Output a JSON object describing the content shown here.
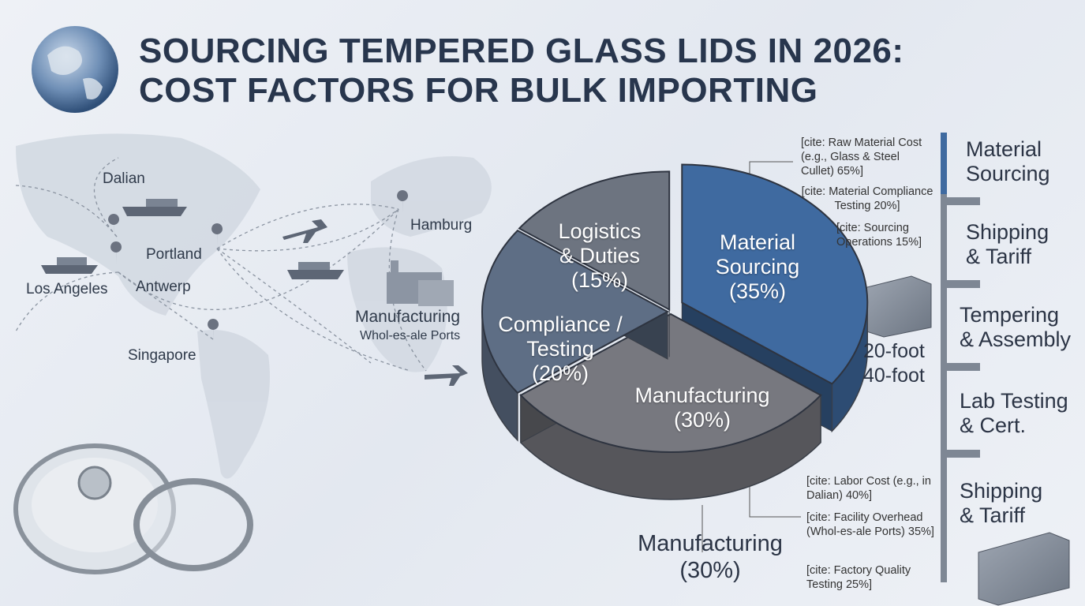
{
  "title": {
    "line1": "SOURCING TEMPERED GLASS LIDS IN 2026:",
    "line2": "COST FACTORS FOR BULK IMPORTING"
  },
  "map": {
    "cities": [
      "Dalian",
      "Portland",
      "Los Angeles",
      "Antwerp",
      "Singapore",
      "Hamburg"
    ],
    "manufacturing": "Manufacturing",
    "ports": "Whol-es-ale Ports"
  },
  "chart_data": {
    "type": "pie",
    "title": "Cost Factors for Bulk Importing",
    "slices": [
      {
        "label": "Material Sourcing",
        "value": 35,
        "display": [
          "Material",
          "Sourcing",
          "(35%)"
        ],
        "color": "#3f6aa0"
      },
      {
        "label": "Manufacturing",
        "value": 30,
        "display": [
          "Manufacturing",
          "(30%)"
        ],
        "color": "#77787f"
      },
      {
        "label": "Compliance / Testing",
        "value": 20,
        "display": [
          "Compliance /",
          "Testing",
          "(20%)"
        ],
        "color": "#5e6e85"
      },
      {
        "label": "Logistics & Duties",
        "value": 15,
        "display": [
          "Logistics",
          "& Duties",
          "(15%)"
        ],
        "color": "#6d7480"
      }
    ]
  },
  "cites_material": [
    "[cite: Raw Material Cost (e.g., Glass & Steel Cullet) 65%]",
    "[cite: Material Compliance Testing 20%]",
    "[cite: Sourcing Operations 15%]"
  ],
  "cites_manufacturing": [
    "[cite: Labor Cost (e.g., in Dalian) 40%]",
    "[cite: Facility Overhead (Whol-es-ale Ports) 35%]",
    "[cite: Factory Quality Testing 25%]"
  ],
  "containers": {
    "a": "20-foot",
    "b": "40-foot"
  },
  "manufacturing_callout": {
    "label": "Manufacturing",
    "pct": "(30%)"
  },
  "sidebar": [
    {
      "l1": "Material",
      "l2": "Sourcing"
    },
    {
      "l1": "Shipping",
      "l2": "& Tariff"
    },
    {
      "l1": "Tempering",
      "l2": "& Assembly"
    },
    {
      "l1": "Lab Testing",
      "l2": "& Cert."
    },
    {
      "l1": "Shipping",
      "l2": "& Tariff"
    }
  ]
}
